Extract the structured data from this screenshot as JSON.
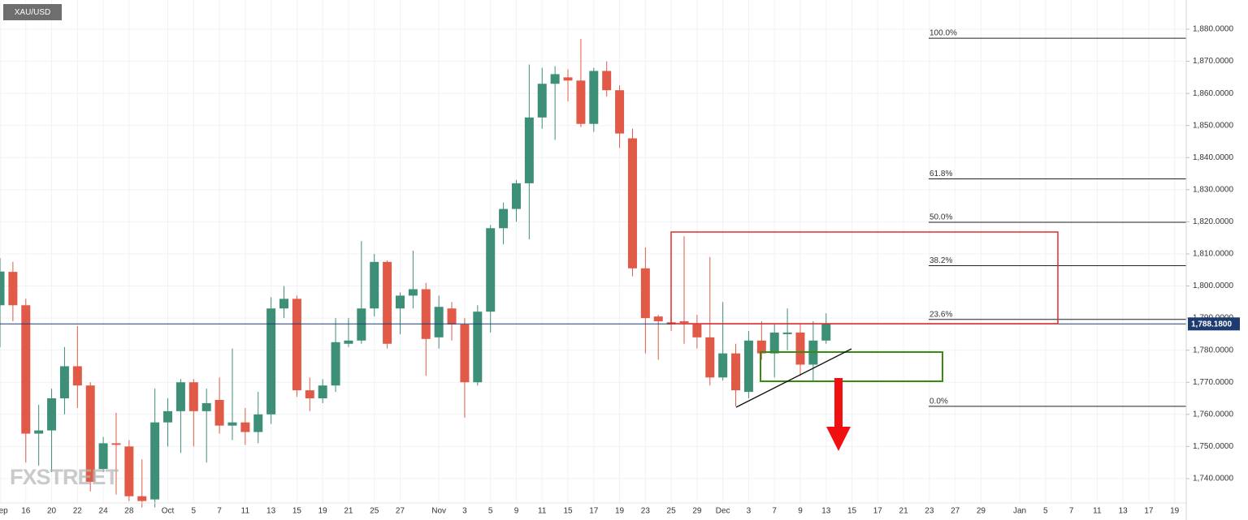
{
  "chart_data": {
    "type": "candlestick",
    "title": "XAU/USD",
    "watermark": "FXSTREET",
    "up_color": "#3d8f78",
    "down_color": "#e05a47",
    "open": [
      1794,
      1804.4,
      1794,
      1754,
      1755,
      1765,
      1775,
      1769,
      1743,
      1751,
      1750,
      1734.5,
      1733.5,
      1757.5,
      1761,
      1770,
      1761,
      1764.5,
      1756.5,
      1757.5,
      1754.5,
      1760,
      1793,
      1796,
      1767.5,
      1765,
      1769,
      1782,
      1783,
      1793,
      1807.5,
      1793,
      1797,
      1799,
      1784,
      1793,
      1788,
      1770,
      1792,
      1818,
      1824,
      1832,
      1852.5,
      1863,
      1865,
      1864,
      1850.5,
      1867,
      1861,
      1846,
      1805.5,
      1790.5,
      1788.7,
      1789,
      1788,
      1784,
      1771.5,
      1779,
      1767,
      1783,
      1779,
      1785,
      1785.5,
      1775.5,
      1783
    ],
    "high": [
      1808.7,
      1807.5,
      1796,
      1763,
      1768,
      1781,
      1787.5,
      1770,
      1753,
      1760.5,
      1752,
      1746,
      1768,
      1765,
      1771,
      1771,
      1768,
      1771.5,
      1780.5,
      1762,
      1767,
      1796.5,
      1800,
      1797,
      1771.5,
      1771,
      1790,
      1790,
      1814,
      1810,
      1808,
      1798,
      1811,
      1801,
      1797,
      1795,
      1790,
      1794,
      1819,
      1826,
      1833,
      1869,
      1868,
      1868.5,
      1867.5,
      1877,
      1868,
      1870,
      1862.5,
      1849,
      1812,
      1791,
      1790,
      1815.5,
      1791,
      1809,
      1795,
      1782,
      1786,
      1789,
      1788,
      1793,
      1788,
      1789,
      1791.5
    ],
    "low": [
      1781,
      1789,
      1745,
      1744,
      1742,
      1760,
      1762,
      1736,
      1742,
      1735,
      1733,
      1731,
      1731,
      1750,
      1748,
      1750,
      1745,
      1754,
      1752,
      1750.5,
      1751,
      1757,
      1790,
      1765.5,
      1761,
      1763.5,
      1767,
      1781,
      1782,
      1790.5,
      1780.5,
      1785,
      1793,
      1772,
      1780.5,
      1783,
      1759,
      1769,
      1785.5,
      1813,
      1820,
      1814.5,
      1849,
      1845.5,
      1857.5,
      1849.5,
      1848,
      1859,
      1843,
      1803,
      1779,
      1777,
      1786,
      1782,
      1780.5,
      1769,
      1770.5,
      1762.5,
      1765,
      1777,
      1771.5,
      1780,
      1772,
      1770.5,
      1782
    ],
    "close": [
      1804.5,
      1794,
      1754,
      1755,
      1765,
      1775,
      1769,
      1739,
      1751,
      1750.5,
      1734.5,
      1733,
      1757.5,
      1761,
      1770,
      1761,
      1763.5,
      1756.5,
      1757.5,
      1754.5,
      1760,
      1793,
      1796,
      1767.5,
      1765,
      1769,
      1782.5,
      1783,
      1793,
      1807.5,
      1782,
      1797,
      1799,
      1783.5,
      1793.5,
      1788,
      1770,
      1792,
      1818,
      1824,
      1832,
      1852.5,
      1863,
      1866,
      1864,
      1850.5,
      1867,
      1861,
      1847.5,
      1805.5,
      1790,
      1789,
      1788,
      1788.5,
      1784,
      1771.5,
      1779,
      1767.5,
      1783,
      1779,
      1785.5,
      1785.5,
      1775.5,
      1783,
      1788.2
    ],
    "last_price": 1788.18,
    "last_price_label": "1,788.1800",
    "fib": {
      "high": 1877.2,
      "low": 1762.5,
      "levels": [
        {
          "value": 100,
          "label": "100.0%"
        },
        {
          "value": 61.8,
          "label": "61.8%"
        },
        {
          "value": 50,
          "label": "50.0%"
        },
        {
          "value": 38.2,
          "label": "38.2%"
        },
        {
          "value": 23.6,
          "label": "23.6%"
        },
        {
          "value": 0,
          "label": "0.0%"
        }
      ]
    },
    "xlim": [
      0,
      91.9
    ],
    "xticks": [
      {
        "value": 0.05,
        "label": "Sep"
      },
      {
        "value": 2,
        "label": "16"
      },
      {
        "value": 4,
        "label": "20"
      },
      {
        "value": 6,
        "label": "22"
      },
      {
        "value": 8,
        "label": "24"
      },
      {
        "value": 10,
        "label": "28"
      },
      {
        "value": 13,
        "label": "Oct"
      },
      {
        "value": 15,
        "label": "5"
      },
      {
        "value": 17,
        "label": "7"
      },
      {
        "value": 19,
        "label": "11"
      },
      {
        "value": 21,
        "label": "13"
      },
      {
        "value": 23,
        "label": "15"
      },
      {
        "value": 25,
        "label": "19"
      },
      {
        "value": 27,
        "label": "21"
      },
      {
        "value": 29,
        "label": "25"
      },
      {
        "value": 31,
        "label": "27"
      },
      {
        "value": 34,
        "label": "Nov"
      },
      {
        "value": 36,
        "label": "3"
      },
      {
        "value": 38,
        "label": "5"
      },
      {
        "value": 40,
        "label": "9"
      },
      {
        "value": 42,
        "label": "11"
      },
      {
        "value": 44,
        "label": "15"
      },
      {
        "value": 46,
        "label": "17"
      },
      {
        "value": 48,
        "label": "19"
      },
      {
        "value": 50,
        "label": "23"
      },
      {
        "value": 52,
        "label": "25"
      },
      {
        "value": 54,
        "label": "29"
      },
      {
        "value": 56,
        "label": "Dec"
      },
      {
        "value": 58,
        "label": "3"
      },
      {
        "value": 60,
        "label": "7"
      },
      {
        "value": 62,
        "label": "9"
      },
      {
        "value": 64,
        "label": "13"
      },
      {
        "value": 66,
        "label": "15"
      },
      {
        "value": 68,
        "label": "17"
      },
      {
        "value": 70,
        "label": "21"
      },
      {
        "value": 72,
        "label": "23"
      },
      {
        "value": 74,
        "label": "27"
      },
      {
        "value": 76,
        "label": "29"
      },
      {
        "value": 79,
        "label": "Jan"
      },
      {
        "value": 81,
        "label": "5"
      },
      {
        "value": 83,
        "label": "7"
      },
      {
        "value": 85,
        "label": "11"
      },
      {
        "value": 87,
        "label": "13"
      },
      {
        "value": 89,
        "label": "17"
      },
      {
        "value": 91,
        "label": "19"
      }
    ],
    "ylim": [
      1732.4,
      1889.1
    ],
    "yticks": [
      {
        "value": 1740,
        "label": "1,740.0000"
      },
      {
        "value": 1750,
        "label": "1,750.0000"
      },
      {
        "value": 1760,
        "label": "1,760.0000"
      },
      {
        "value": 1770,
        "label": "1,770.0000"
      },
      {
        "value": 1780,
        "label": "1,780.0000"
      },
      {
        "value": 1790,
        "label": "1,790.0000"
      },
      {
        "value": 1800,
        "label": "1,800.0000"
      },
      {
        "value": 1810,
        "label": "1,810.0000"
      },
      {
        "value": 1820,
        "label": "1,820.0000"
      },
      {
        "value": 1830,
        "label": "1,830.0000"
      },
      {
        "value": 1840,
        "label": "1,840.0000"
      },
      {
        "value": 1850,
        "label": "1,850.0000"
      },
      {
        "value": 1860,
        "label": "1,860.0000"
      },
      {
        "value": 1870,
        "label": "1,870.0000"
      },
      {
        "value": 1880,
        "label": "1,880.0000"
      }
    ],
    "grid": true
  }
}
